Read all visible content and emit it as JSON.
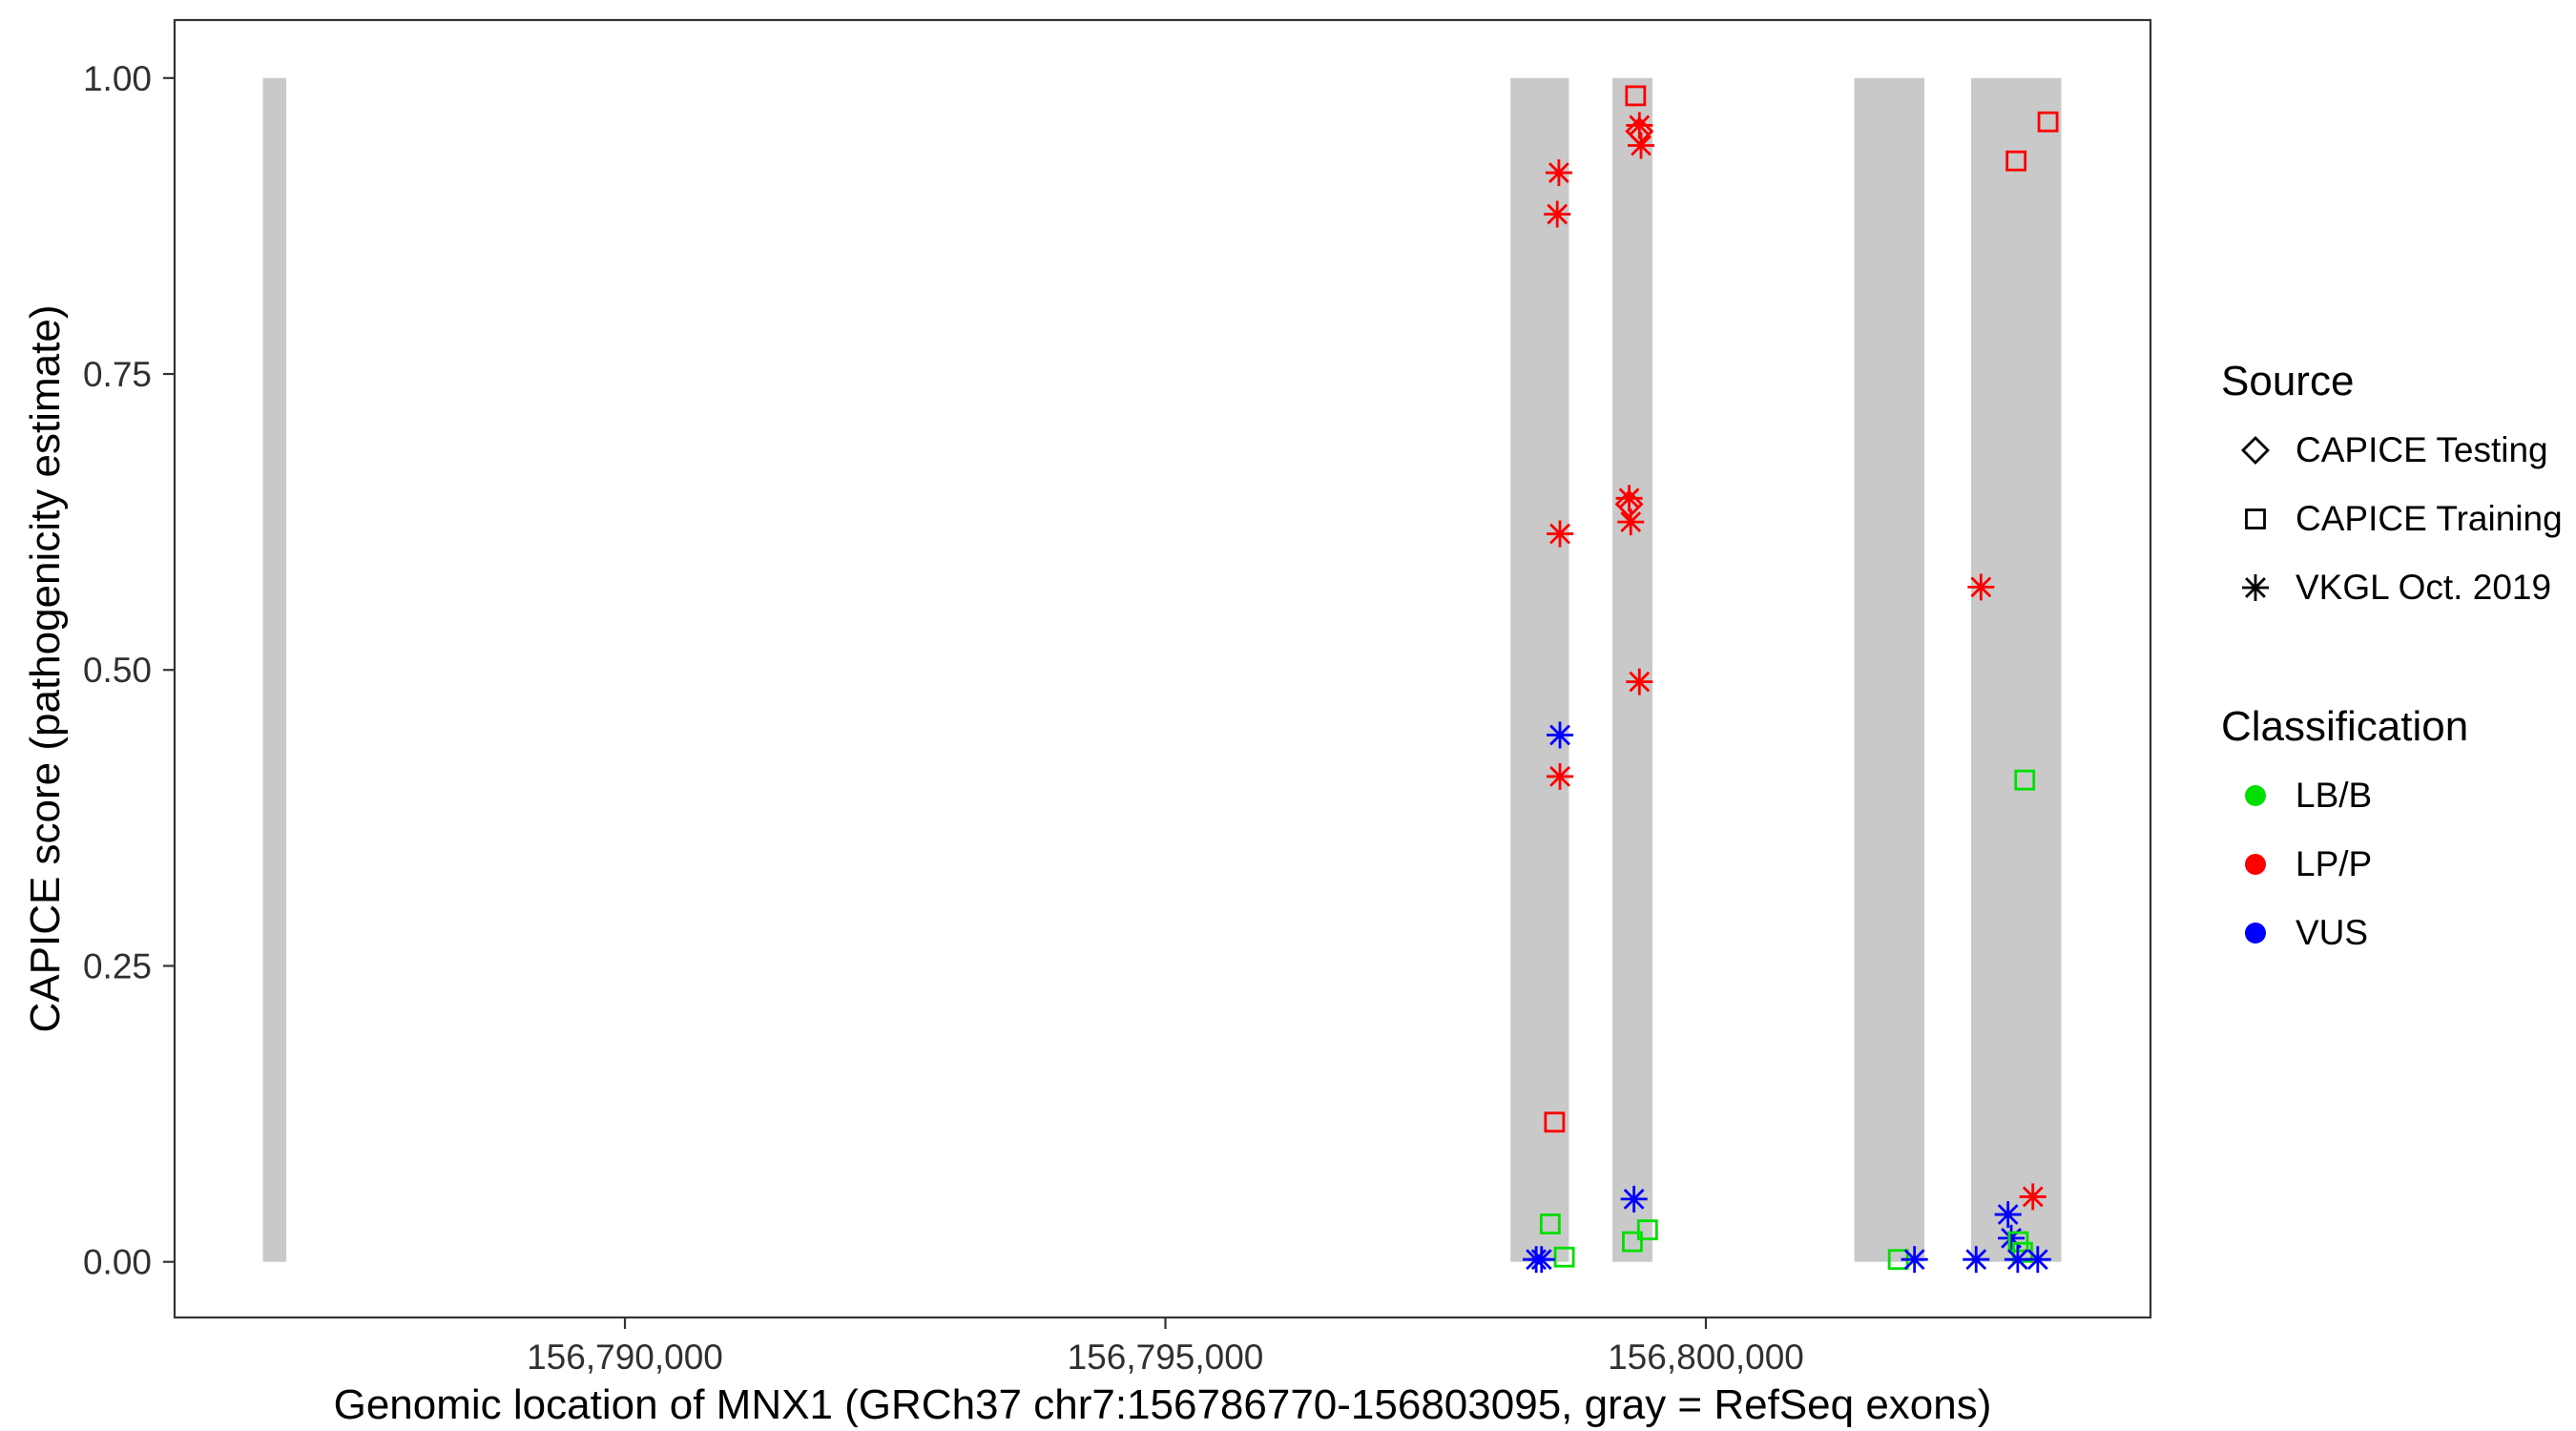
{
  "chart_data": {
    "type": "scatter",
    "title": "",
    "xlabel": "Genomic location of MNX1 (GRCh37 chr7:156786770-156803095, gray = RefSeq exons)",
    "ylabel": "CAPICE score (pathogenicity estimate)",
    "xlim": [
      156785834,
      156804113
    ],
    "ylim": [
      -0.047,
      1.049
    ],
    "grid": false,
    "legend_position": "right",
    "panel_background": "#ffffff",
    "panel_border_color": "#333333",
    "tick_label_color": "#303030",
    "x_ticks": [
      {
        "value": 156790000,
        "label": "156,790,000"
      },
      {
        "value": 156795000,
        "label": "156,795,000"
      },
      {
        "value": 156800000,
        "label": "156,800,000"
      }
    ],
    "y_ticks": [
      {
        "value": 0.0,
        "label": "0.00"
      },
      {
        "value": 0.25,
        "label": "0.25"
      },
      {
        "value": 0.5,
        "label": "0.50"
      },
      {
        "value": 0.75,
        "label": "0.75"
      },
      {
        "value": 1.0,
        "label": "1.00"
      }
    ],
    "exon_color": "#c9c9c9",
    "exon_y": [
      0,
      1
    ],
    "exons": [
      {
        "start": 156786651,
        "end": 156786867
      },
      {
        "start": 156798192,
        "end": 156798733
      },
      {
        "start": 156799136,
        "end": 156799506
      },
      {
        "start": 156801373,
        "end": 156802022
      },
      {
        "start": 156802454,
        "end": 156803288
      }
    ],
    "legend": {
      "source": {
        "title": "Source",
        "items": [
          {
            "label": "CAPICE Testing",
            "shape": "diamond"
          },
          {
            "label": "CAPICE Training",
            "shape": "square"
          },
          {
            "label": "VKGL Oct. 2019",
            "shape": "asterisk"
          }
        ]
      },
      "classification": {
        "title": "Classification",
        "items": [
          {
            "label": "LB/B",
            "color": "#00df00"
          },
          {
            "label": "LP/P",
            "color": "#ff0000"
          },
          {
            "label": "VUS",
            "color": "#0000ff"
          }
        ]
      }
    },
    "points": [
      {
        "pos": 156798640,
        "score": 0.92,
        "source": "VKGL Oct. 2019",
        "class": "LP/P"
      },
      {
        "pos": 156798625,
        "score": 0.885,
        "source": "VKGL Oct. 2019",
        "class": "LP/P"
      },
      {
        "pos": 156798650,
        "score": 0.615,
        "source": "VKGL Oct. 2019",
        "class": "LP/P"
      },
      {
        "pos": 156798650,
        "score": 0.445,
        "source": "VKGL Oct. 2019",
        "class": "VUS"
      },
      {
        "pos": 156798650,
        "score": 0.41,
        "source": "VKGL Oct. 2019",
        "class": "LP/P"
      },
      {
        "pos": 156798600,
        "score": 0.118,
        "source": "CAPICE Training",
        "class": "LP/P"
      },
      {
        "pos": 156798560,
        "score": 0.032,
        "source": "CAPICE Training",
        "class": "LB/B"
      },
      {
        "pos": 156798690,
        "score": 0.004,
        "source": "CAPICE Training",
        "class": "LB/B"
      },
      {
        "pos": 156798430,
        "score": 0.002,
        "source": "VKGL Oct. 2019",
        "class": "VUS"
      },
      {
        "pos": 156798480,
        "score": 0.002,
        "source": "VKGL Oct. 2019",
        "class": "VUS"
      },
      {
        "pos": 156799350,
        "score": 0.985,
        "source": "CAPICE Training",
        "class": "LP/P"
      },
      {
        "pos": 156799385,
        "score": 0.96,
        "source": "VKGL Oct. 2019",
        "class": "LP/P"
      },
      {
        "pos": 156799385,
        "score": 0.955,
        "source": "CAPICE Testing",
        "class": "LP/P"
      },
      {
        "pos": 156799400,
        "score": 0.943,
        "source": "VKGL Oct. 2019",
        "class": "LP/P"
      },
      {
        "pos": 156799290,
        "score": 0.645,
        "source": "VKGL Oct. 2019",
        "class": "LP/P"
      },
      {
        "pos": 156799290,
        "score": 0.64,
        "source": "CAPICE Testing",
        "class": "LP/P"
      },
      {
        "pos": 156799305,
        "score": 0.625,
        "source": "VKGL Oct. 2019",
        "class": "LP/P"
      },
      {
        "pos": 156799385,
        "score": 0.49,
        "source": "VKGL Oct. 2019",
        "class": "LP/P"
      },
      {
        "pos": 156799335,
        "score": 0.053,
        "source": "VKGL Oct. 2019",
        "class": "VUS"
      },
      {
        "pos": 156799320,
        "score": 0.017,
        "source": "CAPICE Training",
        "class": "LB/B"
      },
      {
        "pos": 156799460,
        "score": 0.027,
        "source": "CAPICE Training",
        "class": "LB/B"
      },
      {
        "pos": 156801780,
        "score": 0.002,
        "source": "CAPICE Training",
        "class": "LB/B"
      },
      {
        "pos": 156801930,
        "score": 0.002,
        "source": "VKGL Oct. 2019",
        "class": "VUS"
      },
      {
        "pos": 156802545,
        "score": 0.57,
        "source": "VKGL Oct. 2019",
        "class": "LP/P"
      },
      {
        "pos": 156802870,
        "score": 0.93,
        "source": "CAPICE Training",
        "class": "LP/P"
      },
      {
        "pos": 156803165,
        "score": 0.963,
        "source": "CAPICE Training",
        "class": "LP/P"
      },
      {
        "pos": 156802950,
        "score": 0.407,
        "source": "CAPICE Training",
        "class": "LB/B"
      },
      {
        "pos": 156803025,
        "score": 0.055,
        "source": "VKGL Oct. 2019",
        "class": "LP/P"
      },
      {
        "pos": 156802500,
        "score": 0.002,
        "source": "VKGL Oct. 2019",
        "class": "VUS"
      },
      {
        "pos": 156802795,
        "score": 0.04,
        "source": "VKGL Oct. 2019",
        "class": "VUS"
      },
      {
        "pos": 156802825,
        "score": 0.02,
        "source": "VKGL Oct. 2019",
        "class": "VUS"
      },
      {
        "pos": 156802890,
        "score": 0.017,
        "source": "CAPICE Training",
        "class": "LB/B"
      },
      {
        "pos": 156802930,
        "score": 0.008,
        "source": "CAPICE Training",
        "class": "LB/B"
      },
      {
        "pos": 156802885,
        "score": 0.002,
        "source": "VKGL Oct. 2019",
        "class": "VUS"
      },
      {
        "pos": 156803070,
        "score": 0.002,
        "source": "VKGL Oct. 2019",
        "class": "VUS"
      }
    ]
  }
}
